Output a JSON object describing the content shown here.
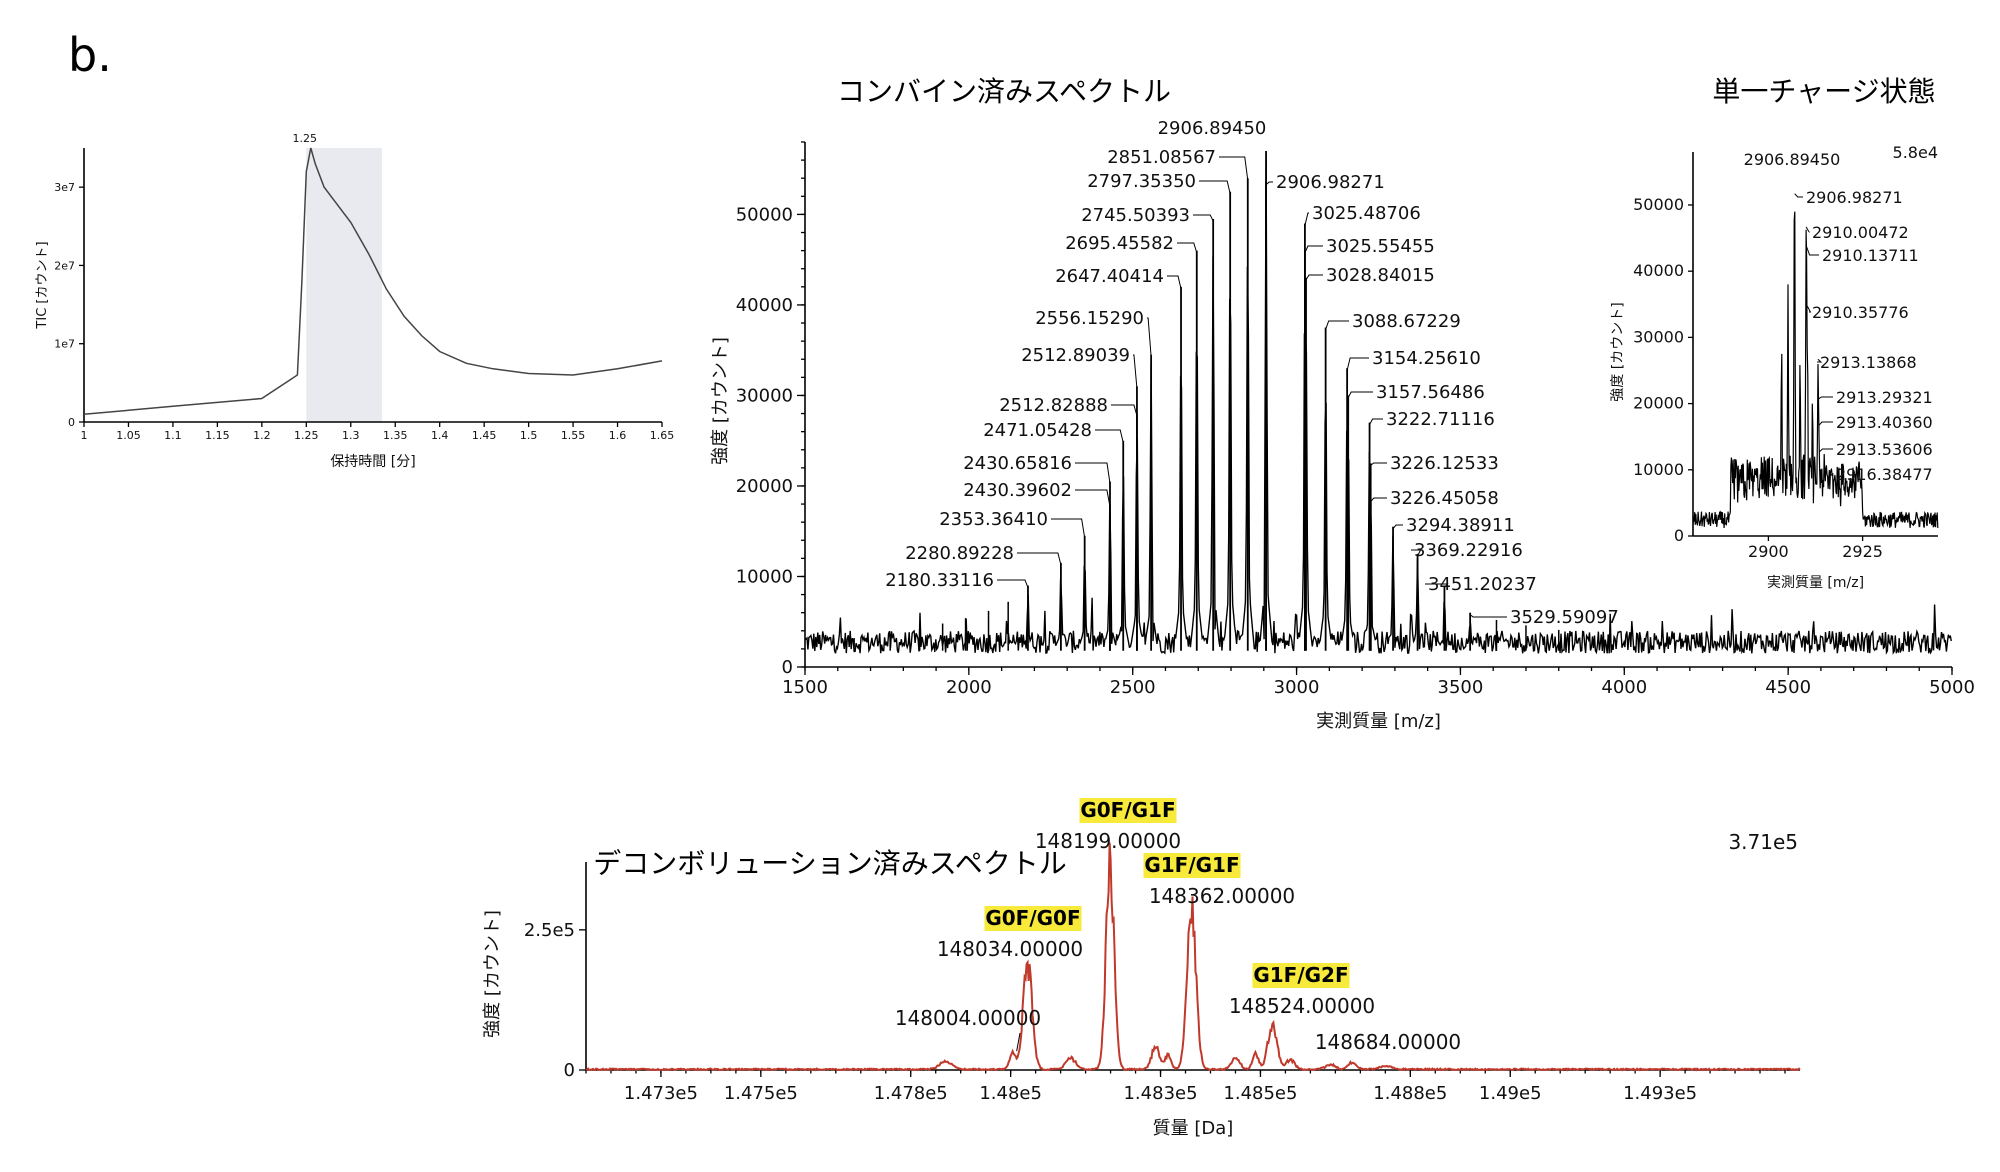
{
  "panel_label": "b.",
  "chart_data": [
    {
      "id": "tic",
      "type": "line",
      "title": "",
      "xlabel": "保持時間 [分]",
      "ylabel": "TIC [カウント]",
      "xlim": [
        1,
        1.65
      ],
      "ylim": [
        0,
        35000000.0
      ],
      "x_ticks": [
        1,
        1.05,
        1.1,
        1.15,
        1.2,
        1.25,
        1.3,
        1.35,
        1.4,
        1.45,
        1.5,
        1.55,
        1.6,
        1.65
      ],
      "x_tick_labels": [
        "1",
        "1.05",
        "1.1",
        "1.15",
        "1.2",
        "1.25",
        "1.3",
        "1.35",
        "1.4",
        "1.45",
        "1.5",
        "1.55",
        "1.6",
        "1.65"
      ],
      "y_ticks": [
        0,
        10000000.0,
        20000000.0,
        30000000.0
      ],
      "y_tick_labels": [
        "0",
        "1e7",
        "2e7",
        "3e7"
      ],
      "highlight_range": [
        1.25,
        1.335
      ],
      "peak_label": "1.25",
      "peak_label_x": 1.255,
      "peak_label_y": 35000000.0,
      "grid": false,
      "colors": {
        "line": "#444444",
        "highlight": "#e8eaf0"
      },
      "x": [
        1.0,
        1.05,
        1.1,
        1.15,
        1.2,
        1.22,
        1.24,
        1.245,
        1.25,
        1.255,
        1.26,
        1.27,
        1.28,
        1.3,
        1.32,
        1.34,
        1.36,
        1.38,
        1.4,
        1.43,
        1.46,
        1.5,
        1.55,
        1.6,
        1.65
      ],
      "y": [
        1000000.0,
        1500000.0,
        2000000.0,
        2500000.0,
        3000000.0,
        4500000.0,
        6000000.0,
        18000000.0,
        32000000.0,
        35000000.0,
        33000000.0,
        30000000.0,
        28500000.0,
        25500000.0,
        21500000.0,
        17000000.0,
        13500000.0,
        11000000.0,
        9000000.0,
        7500000.0,
        6800000.0,
        6200000.0,
        6000000.0,
        6800000.0,
        7800000.0
      ]
    },
    {
      "id": "combined",
      "type": "line",
      "title": "コンバイン済みスペクトル",
      "xlabel": "実測質量 [m/z]",
      "ylabel": "強度 [カウント]",
      "xlim": [
        1500,
        5000
      ],
      "ylim": [
        0,
        58000
      ],
      "x_ticks": [
        1500,
        2000,
        2500,
        3000,
        3500,
        4000,
        4500,
        5000
      ],
      "x_tick_labels": [
        "1500",
        "2000",
        "2500",
        "3000",
        "3500",
        "4000",
        "4500",
        "5000"
      ],
      "y_ticks": [
        0,
        10000,
        20000,
        30000,
        40000,
        50000
      ],
      "y_tick_labels": [
        "0",
        "10000",
        "20000",
        "30000",
        "40000",
        "50000"
      ],
      "grid": false,
      "colors": {
        "line": "#000000"
      },
      "peaks": [
        {
          "mz": 2180.33116,
          "intensity": 9000,
          "label": "2180.33116"
        },
        {
          "mz": 2280.89228,
          "intensity": 11500,
          "label": "2280.89228"
        },
        {
          "mz": 2353.3641,
          "intensity": 14500,
          "label": "2353.36410"
        },
        {
          "mz": 2430.39602,
          "intensity": 18000,
          "label": "2430.39602"
        },
        {
          "mz": 2430.65816,
          "intensity": 20500,
          "label": "2430.65816"
        },
        {
          "mz": 2471.05428,
          "intensity": 25000,
          "label": "2471.05428"
        },
        {
          "mz": 2512.82888,
          "intensity": 28000,
          "label": "2512.82888"
        },
        {
          "mz": 2512.89039,
          "intensity": 31000,
          "label": "2512.89039"
        },
        {
          "mz": 2556.1529,
          "intensity": 34500,
          "label": "2556.15290"
        },
        {
          "mz": 2647.40414,
          "intensity": 42000,
          "label": "2647.40414"
        },
        {
          "mz": 2695.45582,
          "intensity": 46000,
          "label": "2695.45582"
        },
        {
          "mz": 2745.50393,
          "intensity": 49500,
          "label": "2745.50393"
        },
        {
          "mz": 2797.3535,
          "intensity": 52500,
          "label": "2797.35350"
        },
        {
          "mz": 2851.08567,
          "intensity": 54000,
          "label": "2851.08567"
        },
        {
          "mz": 2906.8945,
          "intensity": 57000,
          "label": "2906.89450"
        },
        {
          "mz": 2906.98271,
          "intensity": 53500,
          "label": "2906.98271"
        },
        {
          "mz": 3025.48706,
          "intensity": 49000,
          "label": "3025.48706"
        },
        {
          "mz": 3025.55455,
          "intensity": 46000,
          "label": "3025.55455"
        },
        {
          "mz": 3028.84015,
          "intensity": 43000,
          "label": "3028.84015"
        },
        {
          "mz": 3088.67229,
          "intensity": 37500,
          "label": "3088.67229"
        },
        {
          "mz": 3154.2561,
          "intensity": 33000,
          "label": "3154.25610"
        },
        {
          "mz": 3157.56486,
          "intensity": 30000,
          "label": "3157.56486"
        },
        {
          "mz": 3222.71116,
          "intensity": 27000,
          "label": "3222.71116"
        },
        {
          "mz": 3226.12533,
          "intensity": 22500,
          "label": "3226.12533"
        },
        {
          "mz": 3226.45058,
          "intensity": 18500,
          "label": "3226.45058"
        },
        {
          "mz": 3294.38911,
          "intensity": 15500,
          "label": "3294.38911"
        },
        {
          "mz": 3369.22916,
          "intensity": 12500,
          "label": "3369.22916"
        },
        {
          "mz": 3451.20237,
          "intensity": 9000,
          "label": "3451.20237"
        },
        {
          "mz": 3529.59097,
          "intensity": 6000,
          "label": "3529.59097"
        }
      ]
    },
    {
      "id": "single_charge",
      "type": "line",
      "title": "単一チャージ状態",
      "xlabel": "実測質量 [m/z]",
      "ylabel": "強度 [カウント]",
      "xlim": [
        2880,
        2945
      ],
      "ylim": [
        0,
        58000
      ],
      "x_ticks": [
        2900,
        2925
      ],
      "x_tick_labels": [
        "2900",
        "2925"
      ],
      "y_ticks": [
        0,
        10000,
        20000,
        30000,
        40000,
        50000
      ],
      "y_tick_labels": [
        "0",
        "10000",
        "20000",
        "30000",
        "40000",
        "50000"
      ],
      "max_label": "5.8e4",
      "grid": false,
      "colors": {
        "line": "#000000"
      },
      "peaks": [
        {
          "mz": 2906.8945,
          "intensity": 56000,
          "label": "2906.89450"
        },
        {
          "mz": 2906.98271,
          "intensity": 52000,
          "label": "2906.98271"
        },
        {
          "mz": 2910.00472,
          "intensity": 47000,
          "label": "2910.00472"
        },
        {
          "mz": 2910.13711,
          "intensity": 44000,
          "label": "2910.13711"
        },
        {
          "mz": 2910.35776,
          "intensity": 35000,
          "label": "2910.35776"
        },
        {
          "mz": 2913.13868,
          "intensity": 27000,
          "label": "2913.13868"
        },
        {
          "mz": 2913.29321,
          "intensity": 21000,
          "label": "2913.29321"
        },
        {
          "mz": 2913.4036,
          "intensity": 17000,
          "label": "2913.40360"
        },
        {
          "mz": 2913.53606,
          "intensity": 13000,
          "label": "2913.53606"
        },
        {
          "mz": 2916.38477,
          "intensity": 9500,
          "label": "2916.38477"
        }
      ]
    },
    {
      "id": "deconvoluted",
      "type": "line",
      "title": "デコンボリューション済みスペクトル",
      "xlabel": "質量 [Da]",
      "ylabel": "強度 [カウント]",
      "xlim": [
        147150,
        149580
      ],
      "ylim": [
        0,
        371000
      ],
      "x_ticks": [
        147300,
        147500,
        147800,
        148000,
        148300,
        148500,
        148800,
        149000,
        149300
      ],
      "x_tick_labels": [
        "1.473e5",
        "1.475e5",
        "1.478e5",
        "1.48e5",
        "1.483e5",
        "1.485e5",
        "1.488e5",
        "1.49e5",
        "1.493e5"
      ],
      "y_ticks": [
        0,
        250000
      ],
      "y_tick_labels": [
        "0",
        "2.5e5"
      ],
      "max_label": "3.71e5",
      "grid": false,
      "colors": {
        "line": "#c0392b",
        "highlight": "#f7ea3b"
      },
      "peaks": [
        {
          "mass": 148004.0,
          "intensity": 30000,
          "label": "148004.00000",
          "glycoform": ""
        },
        {
          "mass": 148034.0,
          "intensity": 185000,
          "label": "148034.00000",
          "glycoform": "G0F/G0F"
        },
        {
          "mass": 148199.0,
          "intensity": 371000,
          "label": "148199.00000",
          "glycoform": "G0F/G1F"
        },
        {
          "mass": 148362.0,
          "intensity": 280000,
          "label": "148362.00000",
          "glycoform": "G1F/G1F"
        },
        {
          "mass": 148524.0,
          "intensity": 80000,
          "label": "148524.00000",
          "glycoform": "G1F/G2F"
        },
        {
          "mass": 148684.0,
          "intensity": 12000,
          "label": "148684.00000",
          "glycoform": ""
        }
      ]
    }
  ]
}
